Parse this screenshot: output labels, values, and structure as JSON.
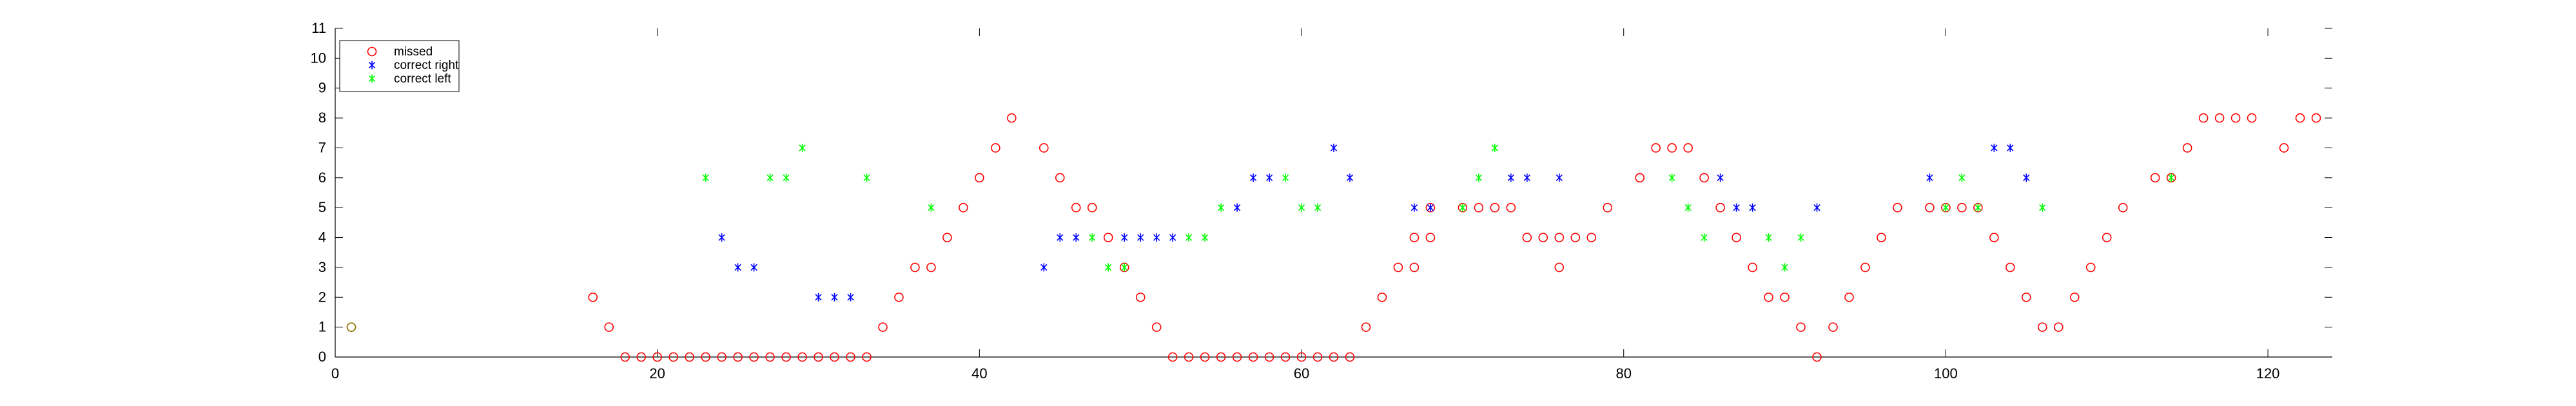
{
  "chart_data": {
    "type": "scatter",
    "title": "",
    "xlabel": "",
    "ylabel": "",
    "xlim": [
      0,
      124
    ],
    "ylim": [
      0,
      11
    ],
    "xticks": [
      0,
      20,
      40,
      60,
      80,
      100,
      120
    ],
    "yticks": [
      0,
      1,
      2,
      3,
      4,
      5,
      6,
      7,
      8,
      9,
      10,
      11
    ],
    "grid": false,
    "legend_position": "top-left",
    "series": [
      {
        "name": "missed",
        "marker": "circle",
        "color": "#ff0000",
        "points": [
          [
            1,
            1
          ],
          [
            16,
            2
          ],
          [
            17,
            1
          ],
          [
            18,
            0
          ],
          [
            19,
            0
          ],
          [
            20,
            0
          ],
          [
            21,
            0
          ],
          [
            22,
            0
          ],
          [
            23,
            0
          ],
          [
            24,
            0
          ],
          [
            25,
            0
          ],
          [
            26,
            0
          ],
          [
            27,
            0
          ],
          [
            28,
            0
          ],
          [
            29,
            0
          ],
          [
            30,
            0
          ],
          [
            31,
            0
          ],
          [
            32,
            0
          ],
          [
            33,
            0
          ],
          [
            34,
            1
          ],
          [
            35,
            2
          ],
          [
            36,
            3
          ],
          [
            37,
            3
          ],
          [
            38,
            4
          ],
          [
            39,
            5
          ],
          [
            40,
            6
          ],
          [
            41,
            7
          ],
          [
            42,
            8
          ],
          [
            44,
            7
          ],
          [
            45,
            6
          ],
          [
            46,
            5
          ],
          [
            47,
            5
          ],
          [
            48,
            4
          ],
          [
            49,
            3
          ],
          [
            50,
            2
          ],
          [
            51,
            1
          ],
          [
            52,
            0
          ],
          [
            53,
            0
          ],
          [
            54,
            0
          ],
          [
            55,
            0
          ],
          [
            56,
            0
          ],
          [
            57,
            0
          ],
          [
            58,
            0
          ],
          [
            59,
            0
          ],
          [
            60,
            0
          ],
          [
            61,
            0
          ],
          [
            62,
            0
          ],
          [
            63,
            0
          ],
          [
            64,
            1
          ],
          [
            65,
            2
          ],
          [
            66,
            3
          ],
          [
            67,
            3
          ],
          [
            67,
            4
          ],
          [
            68,
            4
          ],
          [
            68,
            5
          ],
          [
            70,
            5
          ],
          [
            71,
            5
          ],
          [
            72,
            5
          ],
          [
            73,
            5
          ],
          [
            74,
            4
          ],
          [
            75,
            4
          ],
          [
            76,
            4
          ],
          [
            76,
            3
          ],
          [
            77,
            4
          ],
          [
            78,
            4
          ],
          [
            79,
            5
          ],
          [
            81,
            6
          ],
          [
            82,
            7
          ],
          [
            83,
            7
          ],
          [
            84,
            7
          ],
          [
            85,
            6
          ],
          [
            86,
            5
          ],
          [
            87,
            4
          ],
          [
            88,
            3
          ],
          [
            89,
            2
          ],
          [
            90,
            2
          ],
          [
            91,
            1
          ],
          [
            92,
            0
          ],
          [
            93,
            1
          ],
          [
            94,
            2
          ],
          [
            95,
            3
          ],
          [
            96,
            4
          ],
          [
            97,
            5
          ],
          [
            99,
            5
          ],
          [
            100,
            5
          ],
          [
            101,
            5
          ],
          [
            102,
            5
          ],
          [
            103,
            4
          ],
          [
            104,
            3
          ],
          [
            105,
            2
          ],
          [
            106,
            1
          ],
          [
            107,
            1
          ],
          [
            108,
            2
          ],
          [
            109,
            3
          ],
          [
            110,
            4
          ],
          [
            111,
            5
          ],
          [
            113,
            6
          ],
          [
            114,
            6
          ],
          [
            115,
            7
          ],
          [
            116,
            8
          ],
          [
            117,
            8
          ],
          [
            118,
            8
          ],
          [
            119,
            8
          ],
          [
            121,
            7
          ],
          [
            122,
            8
          ],
          [
            123,
            8
          ]
        ]
      },
      {
        "name": "correct right",
        "marker": "asterisk",
        "color": "#0000ff",
        "points": [
          [
            24,
            4
          ],
          [
            25,
            3
          ],
          [
            26,
            3
          ],
          [
            30,
            2
          ],
          [
            31,
            2
          ],
          [
            32,
            2
          ],
          [
            44,
            3
          ],
          [
            45,
            4
          ],
          [
            46,
            4
          ],
          [
            49,
            4
          ],
          [
            50,
            4
          ],
          [
            51,
            4
          ],
          [
            52,
            4
          ],
          [
            56,
            5
          ],
          [
            57,
            6
          ],
          [
            58,
            6
          ],
          [
            62,
            7
          ],
          [
            63,
            6
          ],
          [
            67,
            5
          ],
          [
            68,
            5
          ],
          [
            73,
            6
          ],
          [
            74,
            6
          ],
          [
            76,
            6
          ],
          [
            86,
            6
          ],
          [
            87,
            5
          ],
          [
            88,
            5
          ],
          [
            92,
            5
          ],
          [
            99,
            6
          ],
          [
            103,
            7
          ],
          [
            104,
            7
          ],
          [
            105,
            6
          ]
        ]
      },
      {
        "name": "correct left",
        "marker": "asterisk",
        "color": "#00ff00",
        "points": [
          [
            23,
            6
          ],
          [
            27,
            6
          ],
          [
            28,
            6
          ],
          [
            29,
            7
          ],
          [
            33,
            6
          ],
          [
            37,
            5
          ],
          [
            47,
            4
          ],
          [
            48,
            3
          ],
          [
            49,
            3
          ],
          [
            53,
            4
          ],
          [
            54,
            4
          ],
          [
            55,
            5
          ],
          [
            59,
            6
          ],
          [
            60,
            5
          ],
          [
            61,
            5
          ],
          [
            70,
            5
          ],
          [
            71,
            6
          ],
          [
            72,
            7
          ],
          [
            83,
            6
          ],
          [
            84,
            5
          ],
          [
            85,
            4
          ],
          [
            89,
            4
          ],
          [
            90,
            3
          ],
          [
            91,
            4
          ],
          [
            100,
            5
          ],
          [
            101,
            6
          ],
          [
            102,
            5
          ],
          [
            106,
            5
          ],
          [
            114,
            6
          ]
        ]
      },
      {
        "name": "",
        "marker": "circle",
        "color": "#808000",
        "points": [
          [
            1,
            1
          ]
        ]
      }
    ]
  }
}
